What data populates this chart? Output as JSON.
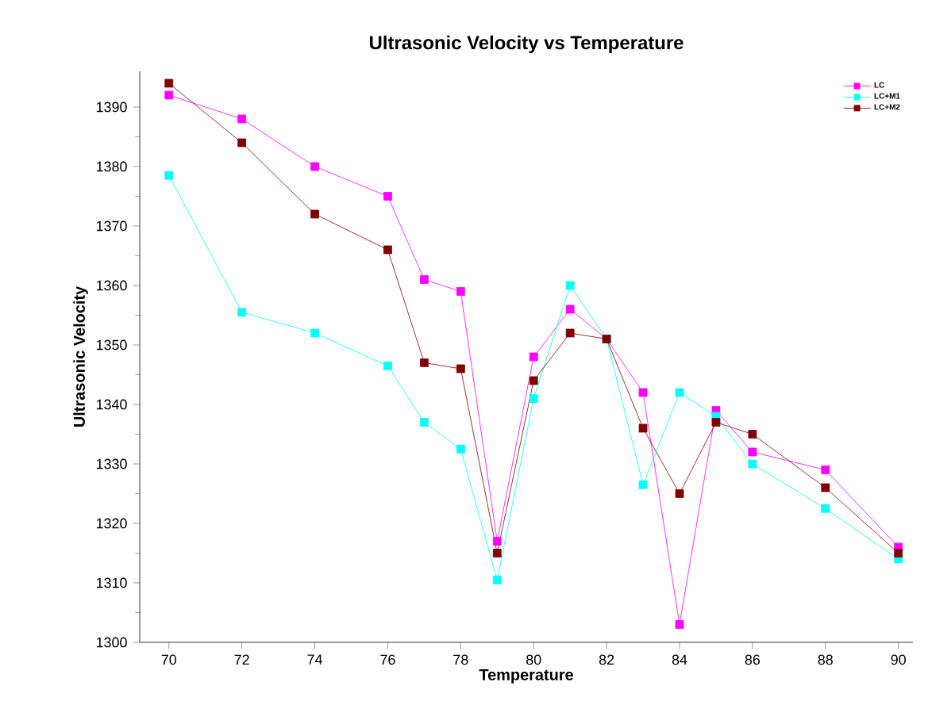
{
  "chart_data": {
    "type": "line",
    "title": "Ultrasonic Velocity vs Temperature",
    "xlabel": "Temperature",
    "ylabel": "Ultrasonic Velocity",
    "x": [
      70,
      72,
      74,
      76,
      77,
      78,
      79,
      80,
      81,
      82,
      83,
      84,
      85,
      86,
      88,
      90
    ],
    "series": [
      {
        "name": "LC",
        "color": "#ff00ff",
        "values": [
          1392,
          1388,
          1380,
          1375,
          1361,
          1359,
          1317,
          1348,
          1356,
          1351,
          1342,
          1303,
          1339,
          1332,
          1329,
          1316
        ]
      },
      {
        "name": "LC+M1",
        "color": "#00ffff",
        "values": [
          1378.5,
          1355.5,
          1352,
          1346.5,
          1337,
          1332.5,
          1310.5,
          1341,
          1360,
          1351,
          1326.5,
          1342,
          1338,
          1330,
          1322.5,
          1314
        ]
      },
      {
        "name": "LC+M2",
        "color": "#800000",
        "values": [
          1394,
          1384,
          1372,
          1366,
          1347,
          1346,
          1315,
          1344,
          1352,
          1351,
          1336,
          1325,
          1337,
          1335,
          1326,
          1315
        ]
      }
    ],
    "xlim": [
      69.2,
      90.4
    ],
    "ylim": [
      1300,
      1396
    ],
    "xticks": [
      70,
      72,
      74,
      76,
      78,
      80,
      82,
      84,
      86,
      88,
      90
    ],
    "yticks": [
      1300,
      1310,
      1320,
      1330,
      1340,
      1350,
      1360,
      1370,
      1380,
      1390
    ],
    "marker": "square",
    "line_style": "solid",
    "legend": "top right",
    "grid": false
  }
}
